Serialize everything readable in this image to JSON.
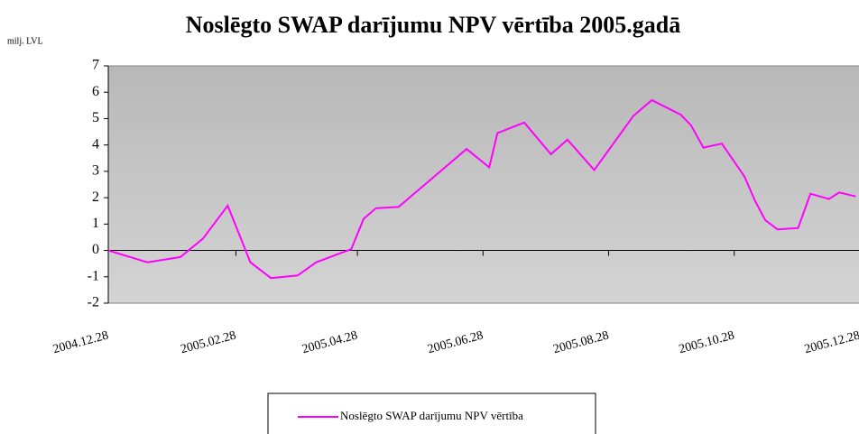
{
  "chart_data": {
    "type": "line",
    "title": "Noslēgto SWAP darījumu NPV vērtība 2005.gadā",
    "y_label": "milj. LVL",
    "x": [
      "2004.12.28",
      "2005.01.16",
      "2005.02.01",
      "2005.02.12",
      "2005.02.24",
      "2005.03.07",
      "2005.03.17",
      "2005.03.30",
      "2005.04.08",
      "2005.04.25",
      "2005.05.01",
      "2005.05.07",
      "2005.05.18",
      "2005.06.20",
      "2005.07.01",
      "2005.07.05",
      "2005.07.18",
      "2005.07.31",
      "2005.08.08",
      "2005.08.21",
      "2005.09.09",
      "2005.09.18",
      "2005.10.02",
      "2005.10.07",
      "2005.10.13",
      "2005.10.22",
      "2005.11.02",
      "2005.11.07",
      "2005.11.12",
      "2005.11.18",
      "2005.11.28",
      "2005.12.04",
      "2005.12.13",
      "2005.12.18",
      "2005.12.26"
    ],
    "series": [
      {
        "name": "Noslēgto SWAP darījumu NPV vērtība",
        "color": "#ff00ff",
        "values": [
          0,
          -0.45,
          -0.25,
          0.45,
          1.7,
          -0.45,
          -1.05,
          -0.95,
          -0.45,
          0.05,
          1.2,
          1.6,
          1.65,
          3.85,
          3.15,
          4.45,
          4.85,
          3.65,
          4.2,
          3.05,
          5.1,
          5.7,
          5.15,
          4.75,
          3.9,
          4.05,
          2.8,
          1.9,
          1.15,
          0.8,
          0.85,
          2.15,
          1.95,
          2.2,
          2.05
        ]
      }
    ],
    "xlim": [
      "2004.12.28",
      "2006.01.06"
    ],
    "xticks": [
      "2004.12.28",
      "2005.02.28",
      "2005.04.28",
      "2005.06.28",
      "2005.08.28",
      "2005.10.28",
      "2005.12.28"
    ],
    "ylim": [
      -2,
      7
    ],
    "yticks": [
      -2,
      -1,
      0,
      1,
      2,
      3,
      4,
      5,
      6,
      7
    ],
    "legend": "bottom"
  }
}
